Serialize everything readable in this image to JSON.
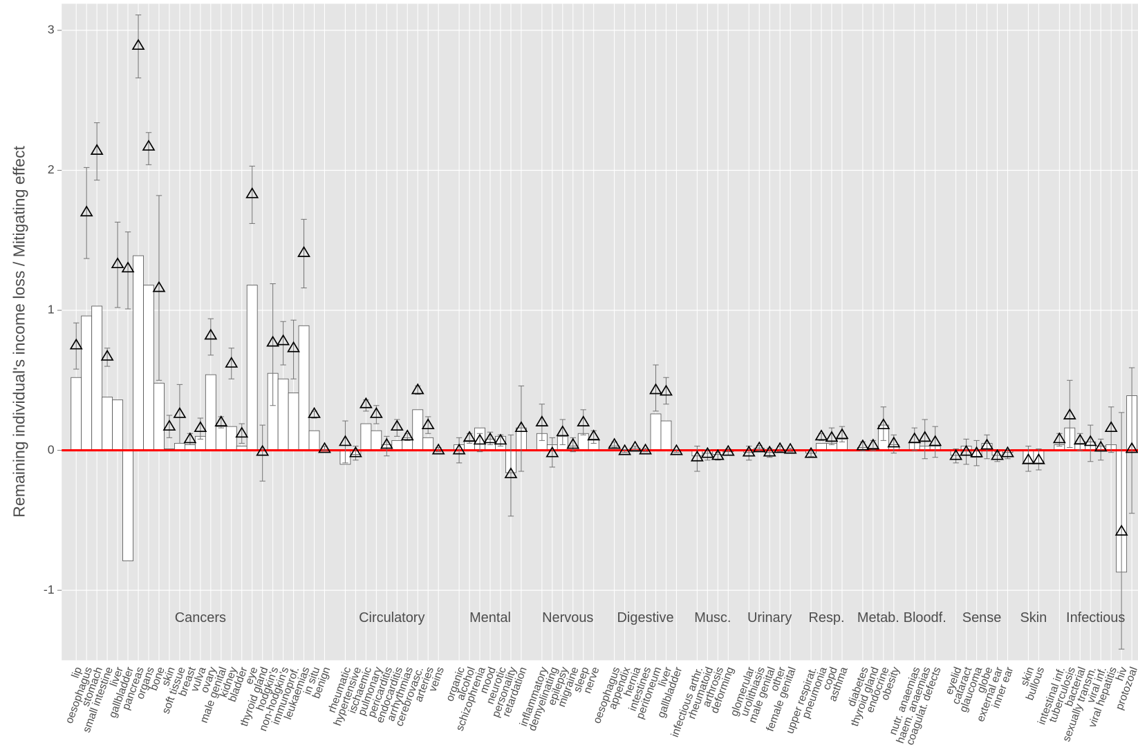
{
  "chart_data": {
    "type": "bar",
    "ylabel": "Remaining individual's income loss / Mitigating effect",
    "ylim": [
      -1.5,
      3.19
    ],
    "yticks": [
      -1,
      0,
      1,
      2,
      3
    ],
    "grid": true,
    "bar_color": "#ffffff",
    "bar_edge_color": "#555555",
    "marker_color": "#000000",
    "error_color": "#777777",
    "reference_line": {
      "value": 0,
      "color": "#ff0000"
    },
    "groups": [
      {
        "name": "Cancers",
        "categories": [
          "lip",
          "oesophagus",
          "stomach",
          "small intestine",
          "liver",
          "gallbladder",
          "pancreas",
          "organs",
          "bone",
          "skin",
          "soft tissue",
          "breast",
          "vulva",
          "ovary",
          "male genital",
          "kidney",
          "bladder",
          "eye",
          "thyroid gland",
          "hodgkin's",
          "non-hodgkin's",
          "immunoprof.",
          "leukaemias",
          "in situ",
          "benign"
        ],
        "bars": [
          0.52,
          0.96,
          1.03,
          0.38,
          0.36,
          -0.79,
          1.39,
          1.18,
          0.48,
          0.01,
          0.05,
          0.04,
          0.1,
          0.54,
          0.17,
          0.17,
          0.03,
          1.18,
          0.0,
          0.55,
          0.51,
          0.41,
          0.89,
          0.14,
          0.005
        ],
        "triangles": [
          0.75,
          1.7,
          2.14,
          0.67,
          1.33,
          1.3,
          2.89,
          2.17,
          1.16,
          0.17,
          0.26,
          0.08,
          0.16,
          0.82,
          0.2,
          0.62,
          0.12,
          1.83,
          -0.01,
          0.77,
          0.78,
          0.73,
          1.41,
          0.26,
          0.01
        ],
        "err_low": [
          0.58,
          1.37,
          1.93,
          0.6,
          1.02,
          1.01,
          2.66,
          2.04,
          0.5,
          0.09,
          0.05,
          0.04,
          0.08,
          0.68,
          0.16,
          0.51,
          0.05,
          1.62,
          -0.22,
          0.32,
          0.61,
          0.51,
          1.16,
          0.23,
          0.0
        ],
        "err_high": [
          0.91,
          2.02,
          2.34,
          0.73,
          1.63,
          1.56,
          3.11,
          2.27,
          1.82,
          0.25,
          0.47,
          0.12,
          0.23,
          0.94,
          0.24,
          0.73,
          0.19,
          2.03,
          0.18,
          1.19,
          0.92,
          0.93,
          1.65,
          0.28,
          0.03
        ]
      },
      {
        "name": "Circulatory",
        "categories": [
          "rheumatic",
          "hypertensive",
          "ischaemic",
          "pulmonary",
          "pericarditis",
          "endocarditis",
          "arrhythmias",
          "cerebrovasc.",
          "arteries",
          "veins"
        ],
        "bars": [
          -0.1,
          -0.03,
          0.19,
          0.14,
          0.04,
          0.07,
          0.09,
          0.29,
          0.09,
          0.005
        ],
        "triangles": [
          0.06,
          -0.02,
          0.33,
          0.26,
          0.04,
          0.17,
          0.1,
          0.43,
          0.18,
          0.0
        ],
        "err_low": [
          -0.09,
          -0.07,
          0.28,
          0.19,
          -0.04,
          0.1,
          0.07,
          0.4,
          0.12,
          -0.01
        ],
        "err_high": [
          0.21,
          0.03,
          0.36,
          0.32,
          0.1,
          0.22,
          0.12,
          0.46,
          0.24,
          0.02
        ]
      },
      {
        "name": "Mental",
        "categories": [
          "organic",
          "alcohol",
          "schizophrenia",
          "mood",
          "neurotic",
          "personality",
          "retardation"
        ],
        "bars": [
          0.04,
          0.07,
          0.16,
          0.08,
          0.1,
          -0.16,
          0.16
        ],
        "triangles": [
          0.0,
          0.09,
          0.07,
          0.08,
          0.07,
          -0.17,
          0.16
        ],
        "err_low": [
          -0.09,
          0.05,
          -0.01,
          0.04,
          0.03,
          -0.47,
          -0.15
        ],
        "err_high": [
          0.09,
          0.12,
          0.12,
          0.13,
          0.11,
          0.11,
          0.46
        ]
      },
      {
        "name": "Nervous",
        "categories": [
          "inflammatory",
          "demyelinating",
          "epilepsy",
          "migraine",
          "sleep",
          "nerve"
        ],
        "bars": [
          0.12,
          0.04,
          0.1,
          0.03,
          0.12,
          0.08
        ],
        "triangles": [
          0.2,
          -0.02,
          0.13,
          0.04,
          0.2,
          0.1
        ],
        "err_low": [
          0.07,
          -0.12,
          0.04,
          -0.01,
          0.11,
          0.05
        ],
        "err_high": [
          0.33,
          0.09,
          0.22,
          0.09,
          0.29,
          0.14
        ]
      },
      {
        "name": "Digestive",
        "categories": [
          "oesophagus",
          "appendix",
          "hernia",
          "intestines",
          "peritoneum",
          "liver",
          "gallbladder"
        ],
        "bars": [
          0.03,
          0.0,
          0.015,
          0.005,
          0.26,
          0.21,
          0.0
        ],
        "triangles": [
          0.04,
          -0.005,
          0.02,
          0.0,
          0.43,
          0.42,
          -0.005
        ],
        "err_low": [
          0.02,
          -0.015,
          0.0,
          -0.01,
          0.28,
          0.33,
          -0.015
        ],
        "err_high": [
          0.06,
          0.005,
          0.03,
          0.015,
          0.61,
          0.52,
          0.005
        ]
      },
      {
        "name": "Musc.",
        "categories": [
          "infectious arthr.",
          "rheumatoid",
          "arthrosis",
          "deforming"
        ],
        "bars": [
          -0.04,
          -0.02,
          -0.03,
          -0.01
        ],
        "triangles": [
          -0.05,
          -0.025,
          -0.04,
          -0.01
        ],
        "err_low": [
          -0.15,
          -0.07,
          -0.07,
          -0.035
        ],
        "err_high": [
          0.03,
          0.005,
          -0.015,
          0.01
        ]
      },
      {
        "name": "Urinary",
        "categories": [
          "glomerular",
          "urolithiasis",
          "male genital",
          "other",
          "female genital"
        ],
        "bars": [
          -0.015,
          0.015,
          -0.015,
          0.005,
          0.0
        ],
        "triangles": [
          -0.015,
          0.015,
          -0.015,
          0.01,
          0.005
        ],
        "err_low": [
          -0.07,
          -0.005,
          -0.05,
          -0.01,
          -0.01
        ],
        "err_high": [
          0.03,
          0.035,
          0.015,
          0.03,
          0.015
        ]
      },
      {
        "name": "Resp.",
        "categories": [
          "upper respirat.",
          "pneumonia",
          "copd",
          "asthma"
        ],
        "bars": [
          -0.02,
          0.05,
          0.05,
          0.08
        ],
        "triangles": [
          -0.025,
          0.1,
          0.09,
          0.11
        ],
        "err_low": [
          -0.045,
          0.07,
          0.04,
          0.06
        ],
        "err_high": [
          -0.005,
          0.12,
          0.16,
          0.17
        ]
      },
      {
        "name": "Metab.",
        "categories": [
          "diabetes",
          "thyroid gland",
          "endocrine",
          "obesity"
        ],
        "bars": [
          0.02,
          0.015,
          0.18,
          0.04
        ],
        "triangles": [
          0.03,
          0.035,
          0.18,
          0.05
        ],
        "err_low": [
          -0.005,
          0.0,
          0.07,
          -0.02
        ],
        "err_high": [
          0.06,
          0.07,
          0.31,
          0.11
        ]
      },
      {
        "name": "Bloodf.",
        "categories": [
          "nutr. anaemias",
          "haem. anaemias",
          "coagulat. defects"
        ],
        "bars": [
          0.06,
          0.03,
          0.03
        ],
        "triangles": [
          0.08,
          0.09,
          0.06
        ],
        "err_low": [
          0.0,
          -0.06,
          -0.05
        ],
        "err_high": [
          0.16,
          0.22,
          0.17
        ]
      },
      {
        "name": "Sense",
        "categories": [
          "eyelid",
          "cataract",
          "glaucoma",
          "globe",
          "external ear",
          "inner ear"
        ],
        "bars": [
          -0.035,
          0.03,
          -0.05,
          0.05,
          -0.035,
          -0.015
        ],
        "triangles": [
          -0.04,
          -0.01,
          -0.02,
          0.035,
          -0.04,
          -0.02
        ],
        "err_low": [
          -0.09,
          -0.1,
          -0.11,
          -0.06,
          -0.08,
          -0.06
        ],
        "err_high": [
          0.01,
          0.08,
          0.07,
          0.11,
          -0.01,
          0.005
        ]
      },
      {
        "name": "Skin",
        "categories": [
          "skin",
          "bullous"
        ],
        "bars": [
          -0.09,
          -0.09
        ],
        "triangles": [
          -0.07,
          -0.07
        ],
        "err_low": [
          -0.15,
          -0.14
        ],
        "err_high": [
          0.03,
          0.01
        ]
      },
      {
        "name": "Infectious",
        "categories": [
          "intestinal inf.",
          "tuberculosis",
          "bacterial",
          "sexually transm.",
          "viral inf.",
          "viral hepatitis",
          "hiv",
          "protozoal"
        ],
        "bars": [
          0.04,
          0.16,
          0.05,
          0.06,
          0.03,
          0.04,
          -0.87,
          0.39
        ],
        "triangles": [
          0.08,
          0.25,
          0.07,
          0.06,
          0.02,
          0.16,
          -0.58,
          0.01
        ],
        "err_low": [
          0.03,
          0.02,
          0.0,
          -0.08,
          -0.07,
          -0.015,
          -1.42,
          -0.45
        ],
        "err_high": [
          0.12,
          0.5,
          0.12,
          0.18,
          0.08,
          0.31,
          0.27,
          0.59
        ]
      }
    ]
  }
}
